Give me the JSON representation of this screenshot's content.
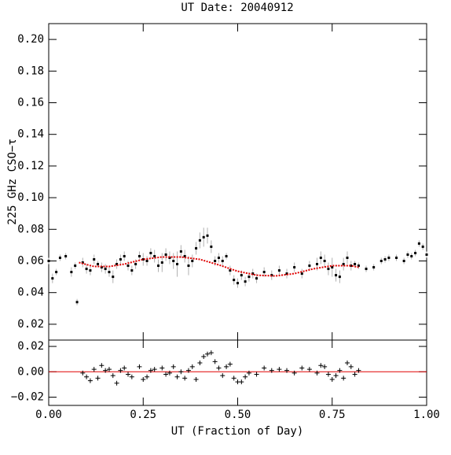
{
  "chart_data": [
    {
      "type": "scatter",
      "title": "UT Date: 20040912",
      "ylabel": "225 GHz CSO−τ",
      "xlim": [
        0,
        1
      ],
      "xticks": [
        0,
        0.25,
        0.5,
        0.75,
        1
      ],
      "ylim": [
        0.01,
        0.21
      ],
      "yticks": [
        {
          "value": 0.02,
          "label": "0.02"
        },
        {
          "value": 0.04,
          "label": "0.04"
        },
        {
          "value": 0.06,
          "label": "0.06"
        },
        {
          "value": 0.08,
          "label": "0.08"
        },
        {
          "value": 0.1,
          "label": "0.10"
        },
        {
          "value": 0.12,
          "label": "0.12"
        },
        {
          "value": 0.14,
          "label": "0.14"
        },
        {
          "value": 0.16,
          "label": "0.16"
        },
        {
          "value": 0.18,
          "label": "0.18"
        },
        {
          "value": 0.2,
          "label": "0.20"
        }
      ],
      "color": "#000000",
      "error_color": "#b0b0b0",
      "x": [
        0.0,
        0.01,
        0.02,
        0.03,
        0.045,
        0.06,
        0.07,
        0.075,
        0.09,
        0.1,
        0.11,
        0.12,
        0.13,
        0.14,
        0.15,
        0.16,
        0.17,
        0.18,
        0.19,
        0.2,
        0.21,
        0.22,
        0.23,
        0.24,
        0.25,
        0.26,
        0.27,
        0.28,
        0.29,
        0.3,
        0.31,
        0.32,
        0.33,
        0.34,
        0.35,
        0.36,
        0.37,
        0.38,
        0.39,
        0.4,
        0.41,
        0.42,
        0.43,
        0.44,
        0.45,
        0.46,
        0.47,
        0.48,
        0.49,
        0.5,
        0.51,
        0.52,
        0.53,
        0.54,
        0.55,
        0.57,
        0.59,
        0.61,
        0.63,
        0.65,
        0.67,
        0.69,
        0.71,
        0.72,
        0.73,
        0.74,
        0.75,
        0.76,
        0.77,
        0.78,
        0.79,
        0.8,
        0.81,
        0.82,
        0.84,
        0.86,
        0.88,
        0.89,
        0.9,
        0.92,
        0.94,
        0.95,
        0.96,
        0.97,
        0.98,
        0.99,
        1.0
      ],
      "values": [
        0.06,
        0.049,
        0.053,
        0.062,
        0.063,
        0.053,
        0.057,
        0.034,
        0.059,
        0.055,
        0.054,
        0.061,
        0.058,
        0.056,
        0.055,
        0.053,
        0.05,
        0.058,
        0.061,
        0.063,
        0.057,
        0.054,
        0.058,
        0.063,
        0.061,
        0.06,
        0.065,
        0.063,
        0.057,
        0.059,
        0.064,
        0.062,
        0.06,
        0.058,
        0.066,
        0.063,
        0.057,
        0.06,
        0.068,
        0.073,
        0.075,
        0.076,
        0.069,
        0.06,
        0.062,
        0.06,
        0.063,
        0.054,
        0.048,
        0.046,
        0.051,
        0.047,
        0.05,
        0.052,
        0.049,
        0.053,
        0.051,
        0.054,
        0.052,
        0.056,
        0.052,
        0.057,
        0.058,
        0.062,
        0.06,
        0.055,
        0.056,
        0.051,
        0.05,
        0.058,
        0.062,
        0.057,
        0.058,
        0.057,
        0.055,
        0.056,
        0.06,
        0.061,
        0.062,
        0.062,
        0.06,
        0.064,
        0.063,
        0.065,
        0.071,
        0.069,
        0.064
      ],
      "errors": [
        0.002,
        0.003,
        0.002,
        0.002,
        0.002,
        0.003,
        0.002,
        0.002,
        0.003,
        0.003,
        0.003,
        0.003,
        0.002,
        0.003,
        0.003,
        0.003,
        0.004,
        0.003,
        0.003,
        0.003,
        0.003,
        0.003,
        0.003,
        0.003,
        0.004,
        0.003,
        0.003,
        0.004,
        0.004,
        0.006,
        0.004,
        0.004,
        0.005,
        0.008,
        0.004,
        0.004,
        0.006,
        0.004,
        0.004,
        0.005,
        0.006,
        0.005,
        0.004,
        0.003,
        0.003,
        0.003,
        0.002,
        0.003,
        0.003,
        0.003,
        0.003,
        0.003,
        0.003,
        0.003,
        0.003,
        0.003,
        0.003,
        0.003,
        0.003,
        0.003,
        0.003,
        0.003,
        0.004,
        0.004,
        0.004,
        0.004,
        0.006,
        0.004,
        0.004,
        0.004,
        0.004,
        0.003,
        0.002,
        0.002,
        0.002,
        0.002,
        0.002,
        0.002,
        0.002,
        0.002,
        0.002,
        0.002,
        0.002,
        0.002,
        0.002,
        0.002,
        0.002
      ],
      "fit": {
        "color": "#e00000",
        "x": [
          0.08,
          0.12,
          0.16,
          0.2,
          0.25,
          0.3,
          0.35,
          0.4,
          0.45,
          0.5,
          0.55,
          0.6,
          0.65,
          0.7,
          0.75,
          0.8,
          0.82
        ],
        "values": [
          0.059,
          0.0565,
          0.0565,
          0.058,
          0.061,
          0.0625,
          0.0625,
          0.061,
          0.0575,
          0.0535,
          0.051,
          0.0505,
          0.052,
          0.055,
          0.057,
          0.057,
          0.056
        ]
      }
    },
    {
      "type": "scatter",
      "xlabel": "UT (Fraction of Day)",
      "xlim": [
        0,
        1
      ],
      "xticks": [
        {
          "value": 0,
          "label": "0.00"
        },
        {
          "value": 0.25,
          "label": "0.25"
        },
        {
          "value": 0.5,
          "label": "0.50"
        },
        {
          "value": 0.75,
          "label": "0.75"
        },
        {
          "value": 1,
          "label": "1.00"
        }
      ],
      "ylim": [
        -0.0265,
        0.025
      ],
      "yticks": [
        {
          "value": -0.02,
          "label": "−0.02"
        },
        {
          "value": 0,
          "label": "0.00"
        },
        {
          "value": 0.02,
          "label": "0.02"
        }
      ],
      "color": "#000000",
      "reference_line": {
        "value": 0,
        "color": "#e00000"
      },
      "x": [
        0.09,
        0.1,
        0.11,
        0.12,
        0.13,
        0.14,
        0.15,
        0.16,
        0.17,
        0.18,
        0.19,
        0.2,
        0.21,
        0.22,
        0.24,
        0.25,
        0.26,
        0.27,
        0.28,
        0.3,
        0.31,
        0.32,
        0.33,
        0.34,
        0.35,
        0.36,
        0.37,
        0.38,
        0.39,
        0.4,
        0.41,
        0.42,
        0.43,
        0.44,
        0.45,
        0.46,
        0.47,
        0.48,
        0.49,
        0.5,
        0.51,
        0.52,
        0.53,
        0.55,
        0.57,
        0.59,
        0.61,
        0.63,
        0.65,
        0.67,
        0.69,
        0.71,
        0.72,
        0.73,
        0.74,
        0.75,
        0.76,
        0.77,
        0.78,
        0.79,
        0.8,
        0.81,
        0.82
      ],
      "values": [
        -0.001,
        -0.004,
        -0.007,
        0.002,
        -0.005,
        0.005,
        0.001,
        0.002,
        -0.003,
        -0.009,
        0.001,
        0.003,
        -0.002,
        -0.004,
        0.004,
        -0.006,
        -0.004,
        0.001,
        0.002,
        0.003,
        -0.002,
        -0.001,
        0.004,
        -0.004,
        0.0,
        -0.005,
        0.001,
        0.004,
        -0.006,
        0.007,
        0.012,
        0.014,
        0.015,
        0.008,
        0.003,
        -0.003,
        0.004,
        0.006,
        -0.005,
        -0.008,
        -0.008,
        -0.004,
        -0.001,
        -0.002,
        0.003,
        0.001,
        0.002,
        0.001,
        -0.001,
        0.003,
        0.002,
        -0.001,
        0.005,
        0.004,
        -0.002,
        -0.006,
        -0.003,
        0.001,
        -0.005,
        0.007,
        0.004,
        -0.002,
        0.001
      ]
    }
  ]
}
